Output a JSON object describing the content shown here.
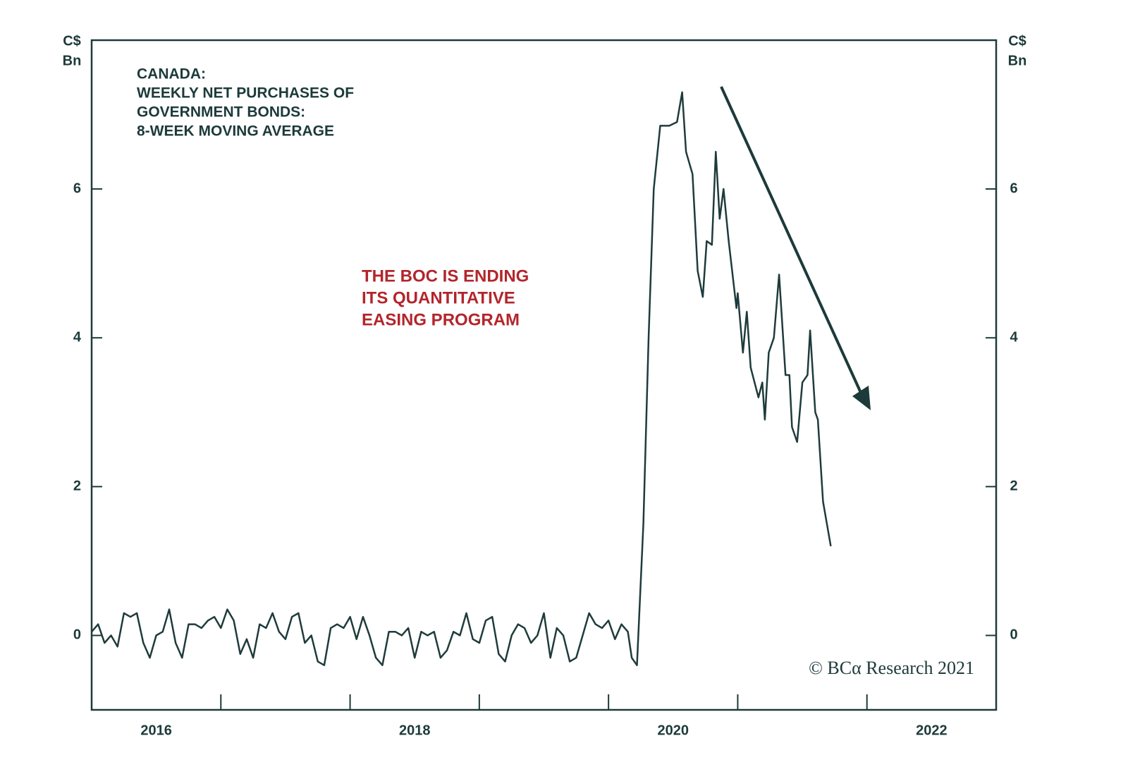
{
  "chart_data": {
    "type": "line",
    "title": [
      "CANADA:",
      "WEEKLY NET PURCHASES OF",
      "GOVERNMENT BONDS:",
      "8-WEEK MOVING AVERAGE"
    ],
    "annotation": [
      "THE BOC IS ENDING",
      "ITS QUANTITATIVE",
      "EASING PROGRAM"
    ],
    "credit": "© BCα Research 2021",
    "y_label": [
      "C$",
      "Bn"
    ],
    "y2_label": [
      "C$",
      "Bn"
    ],
    "xlim": [
      2016,
      2023
    ],
    "xticks": [
      2017,
      2018,
      2019,
      2020,
      2021,
      2022
    ],
    "xticklabels": [
      {
        "value": 2016.5,
        "label": "2016"
      },
      {
        "value": 2018.5,
        "label": "2018"
      },
      {
        "value": 2020.5,
        "label": "2020"
      },
      {
        "value": 2022.5,
        "label": "2022"
      }
    ],
    "ylim": [
      -1,
      8
    ],
    "yticks": [
      0,
      2,
      4,
      6
    ],
    "color": "#1f3b3b",
    "x": [
      2016.0,
      2016.05,
      2016.1,
      2016.15,
      2016.2,
      2016.25,
      2016.3,
      2016.35,
      2016.4,
      2016.45,
      2016.5,
      2016.55,
      2016.6,
      2016.65,
      2016.7,
      2016.75,
      2016.8,
      2016.85,
      2016.9,
      2016.95,
      2017.0,
      2017.05,
      2017.1,
      2017.15,
      2017.2,
      2017.25,
      2017.3,
      2017.35,
      2017.4,
      2017.45,
      2017.5,
      2017.55,
      2017.6,
      2017.65,
      2017.7,
      2017.75,
      2017.8,
      2017.85,
      2017.9,
      2017.95,
      2018.0,
      2018.05,
      2018.1,
      2018.15,
      2018.2,
      2018.25,
      2018.3,
      2018.35,
      2018.4,
      2018.45,
      2018.5,
      2018.55,
      2018.6,
      2018.65,
      2018.7,
      2018.75,
      2018.8,
      2018.85,
      2018.9,
      2018.95,
      2019.0,
      2019.05,
      2019.1,
      2019.15,
      2019.2,
      2019.25,
      2019.3,
      2019.35,
      2019.4,
      2019.45,
      2019.5,
      2019.55,
      2019.6,
      2019.65,
      2019.7,
      2019.75,
      2019.8,
      2019.85,
      2019.9,
      2019.95,
      2020.0,
      2020.05,
      2020.1,
      2020.15,
      2020.18,
      2020.22,
      2020.27,
      2020.31,
      2020.35,
      2020.4,
      2020.47,
      2020.53,
      2020.57,
      2020.6,
      2020.65,
      2020.69,
      2020.73,
      2020.76,
      2020.8,
      2020.83,
      2020.86,
      2020.89,
      2020.93,
      2020.99,
      2021.0,
      2021.04,
      2021.07,
      2021.1,
      2021.16,
      2021.19,
      2021.21,
      2021.24,
      2021.28,
      2021.32,
      2021.37,
      2021.4,
      2021.42,
      2021.46,
      2021.5,
      2021.54,
      2021.56,
      2021.6,
      2021.62,
      2021.66,
      2021.72
    ],
    "values": [
      0.05,
      0.15,
      -0.1,
      0.0,
      -0.15,
      0.3,
      0.25,
      0.3,
      -0.1,
      -0.3,
      0.0,
      0.05,
      0.35,
      -0.1,
      -0.3,
      0.15,
      0.15,
      0.1,
      0.2,
      0.25,
      0.1,
      0.35,
      0.2,
      -0.25,
      -0.05,
      -0.3,
      0.15,
      0.1,
      0.3,
      0.05,
      -0.05,
      0.25,
      0.3,
      -0.1,
      0.0,
      -0.35,
      -0.4,
      0.1,
      0.15,
      0.1,
      0.25,
      -0.05,
      0.25,
      0.0,
      -0.3,
      -0.4,
      0.05,
      0.05,
      0.0,
      0.1,
      -0.3,
      0.05,
      0.0,
      0.05,
      -0.3,
      -0.2,
      0.05,
      0.0,
      0.3,
      -0.05,
      -0.1,
      0.2,
      0.25,
      -0.25,
      -0.35,
      0.0,
      0.15,
      0.1,
      -0.1,
      0.0,
      0.3,
      -0.3,
      0.1,
      0.0,
      -0.35,
      -0.3,
      0.0,
      0.3,
      0.15,
      0.1,
      0.2,
      -0.05,
      0.15,
      0.05,
      -0.3,
      -0.4,
      1.5,
      4.0,
      6.0,
      6.85,
      6.85,
      6.9,
      7.3,
      6.5,
      6.2,
      4.9,
      4.55,
      5.3,
      5.25,
      6.5,
      5.6,
      6.0,
      5.3,
      4.4,
      4.6,
      3.8,
      4.35,
      3.6,
      3.2,
      3.4,
      2.9,
      3.8,
      4.0,
      4.85,
      3.5,
      3.5,
      2.8,
      2.6,
      3.4,
      3.5,
      4.1,
      3.0,
      2.9,
      1.8,
      1.2
    ]
  }
}
